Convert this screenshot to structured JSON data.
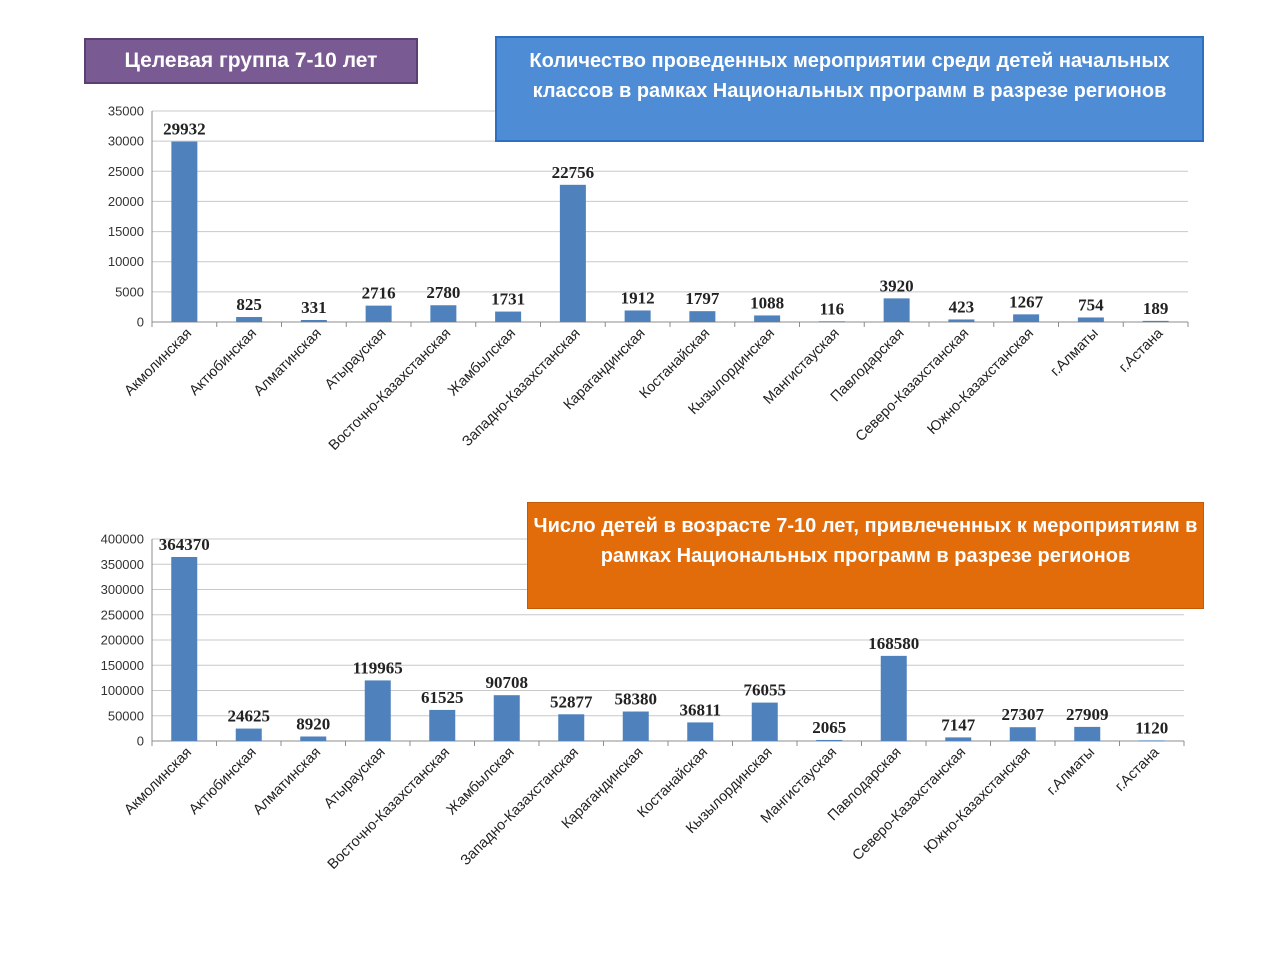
{
  "badge": {
    "text": "Целевая группа 7-10 лет",
    "color": "#7a5a93"
  },
  "chart_data": [
    {
      "type": "bar",
      "title": "Количество проведенных мероприятии среди детей начальных классов в рамках   Национальных программ в разрезе  регионов",
      "title_color": "#4e8cd6",
      "bar_color": "#4f81bd",
      "categories": [
        "Акмолинская",
        "Актюбинская",
        "Алматинская",
        "Атырауская",
        "Восточно-Казахстанская",
        "Жамбылская",
        "Западно-Казахстанская",
        "Карагандинская",
        "Костанайская",
        "Кызылординская",
        "Мангистауская",
        "Павлодарская",
        "Северо-Казахстанская",
        "Южно-Казахстанская",
        "г.Алматы",
        "г.Астана"
      ],
      "values": [
        29932,
        825,
        331,
        2716,
        2780,
        1731,
        22756,
        1912,
        1797,
        1088,
        116,
        3920,
        423,
        1267,
        754,
        189
      ],
      "yticks": [
        "0",
        "5000",
        "10000",
        "15000",
        "20000",
        "25000",
        "30000",
        "35000"
      ],
      "ylim": [
        0,
        35000
      ],
      "grid": true,
      "xlabel": "",
      "ylabel": ""
    },
    {
      "type": "bar",
      "title": "Число детей  в возрасте 7-10 лет, привлеченных к мероприятиям в рамках Национальных программ в разрезе регионов",
      "title_color": "#e36c0a",
      "bar_color": "#4f81bd",
      "categories": [
        "Акмолинская",
        "Актюбинская",
        "Алматинская",
        "Атырауская",
        "Восточно-Казахстанская",
        "Жамбылская",
        "Западно-Казахстанская",
        "Карагандинская",
        "Костанайская",
        "Кызылординская",
        "Мангистауская",
        "Павлодарская",
        "Северо-Казахстанская",
        "Южно-Казахстанская",
        "г.Алматы",
        "г.Астана"
      ],
      "values": [
        364370,
        24625,
        8920,
        119965,
        61525,
        90708,
        52877,
        58380,
        36811,
        76055,
        2065,
        168580,
        7147,
        27307,
        27909,
        1120
      ],
      "yticks": [
        "0",
        "50000",
        "100000",
        "150000",
        "200000",
        "250000",
        "300000",
        "350000",
        "400000"
      ],
      "ylim": [
        0,
        400000
      ],
      "grid": true,
      "xlabel": "",
      "ylabel": ""
    }
  ]
}
